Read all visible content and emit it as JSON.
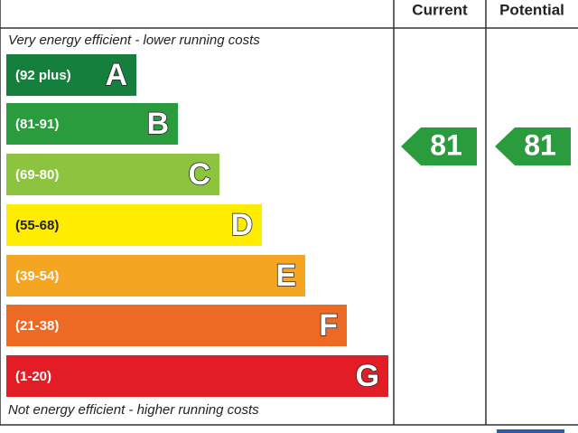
{
  "header": {
    "current": "Current",
    "potential": "Potential"
  },
  "top_note": "Very energy efficient - lower running costs",
  "bottom_note": "Not energy efficient - higher running costs",
  "bands": [
    {
      "range": "(92 plus)",
      "letter": "A"
    },
    {
      "range": "(81-91)",
      "letter": "B"
    },
    {
      "range": "(69-80)",
      "letter": "C"
    },
    {
      "range": "(55-68)",
      "letter": "D"
    },
    {
      "range": "(39-54)",
      "letter": "E"
    },
    {
      "range": "(21-38)",
      "letter": "F"
    },
    {
      "range": "(1-20)",
      "letter": "G"
    }
  ],
  "current": 81,
  "potential": 81
}
